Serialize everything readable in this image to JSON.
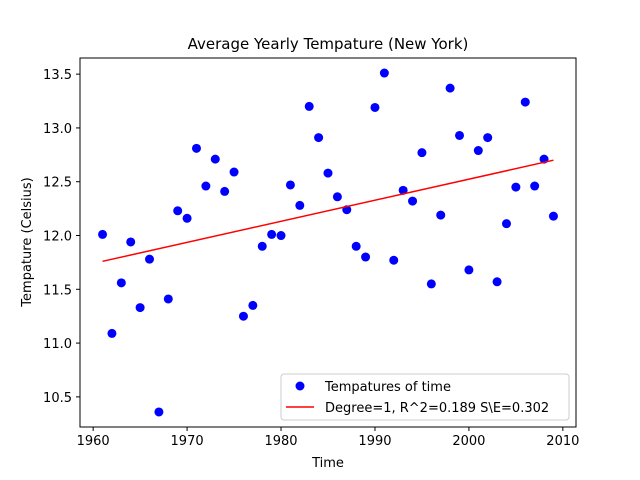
{
  "chart_data": {
    "type": "scatter",
    "title": "Average Yearly Tempature (New York)",
    "xlabel": "Time",
    "ylabel": "Tempature (Celsius)",
    "xlim": [
      1958.6,
      2011.4
    ],
    "ylim": [
      10.22,
      13.65
    ],
    "xticks": [
      1960,
      1970,
      1980,
      1990,
      2000,
      2010
    ],
    "yticks": [
      10.5,
      11.0,
      11.5,
      12.0,
      12.5,
      13.0,
      13.5
    ],
    "ytick_labels": [
      "10.5",
      "11.0",
      "11.5",
      "12.0",
      "12.5",
      "13.0",
      "13.5"
    ],
    "grid": false,
    "legend_position": "bottom-right",
    "series": [
      {
        "name": "Tempatures of time",
        "kind": "scatter",
        "color": "#0000ff",
        "x": [
          1961,
          1962,
          1963,
          1964,
          1965,
          1966,
          1967,
          1968,
          1969,
          1970,
          1971,
          1972,
          1973,
          1974,
          1975,
          1976,
          1977,
          1978,
          1979,
          1980,
          1981,
          1982,
          1983,
          1984,
          1985,
          1986,
          1987,
          1988,
          1989,
          1990,
          1991,
          1992,
          1993,
          1994,
          1995,
          1996,
          1997,
          1998,
          1999,
          2000,
          2001,
          2002,
          2003,
          2004,
          2005,
          2006,
          2007,
          2008,
          2009
        ],
        "y": [
          12.01,
          11.09,
          11.56,
          11.94,
          11.33,
          11.78,
          10.36,
          11.41,
          12.23,
          12.16,
          12.81,
          12.46,
          12.71,
          12.41,
          12.59,
          11.25,
          11.35,
          11.9,
          12.01,
          12.0,
          12.47,
          12.28,
          13.2,
          12.91,
          12.58,
          12.36,
          12.24,
          11.9,
          11.8,
          13.19,
          13.51,
          11.77,
          12.42,
          12.32,
          12.77,
          11.55,
          12.19,
          13.37,
          12.93,
          11.68,
          12.79,
          12.91,
          11.57,
          12.11,
          12.45,
          13.24,
          12.46,
          12.71,
          12.18
        ]
      },
      {
        "name": "Degree=1, R^2=0.189 S\\E=0.302",
        "kind": "line",
        "color": "#ff0000",
        "x": [
          1961,
          2009
        ],
        "y": [
          11.76,
          12.7
        ]
      }
    ]
  }
}
